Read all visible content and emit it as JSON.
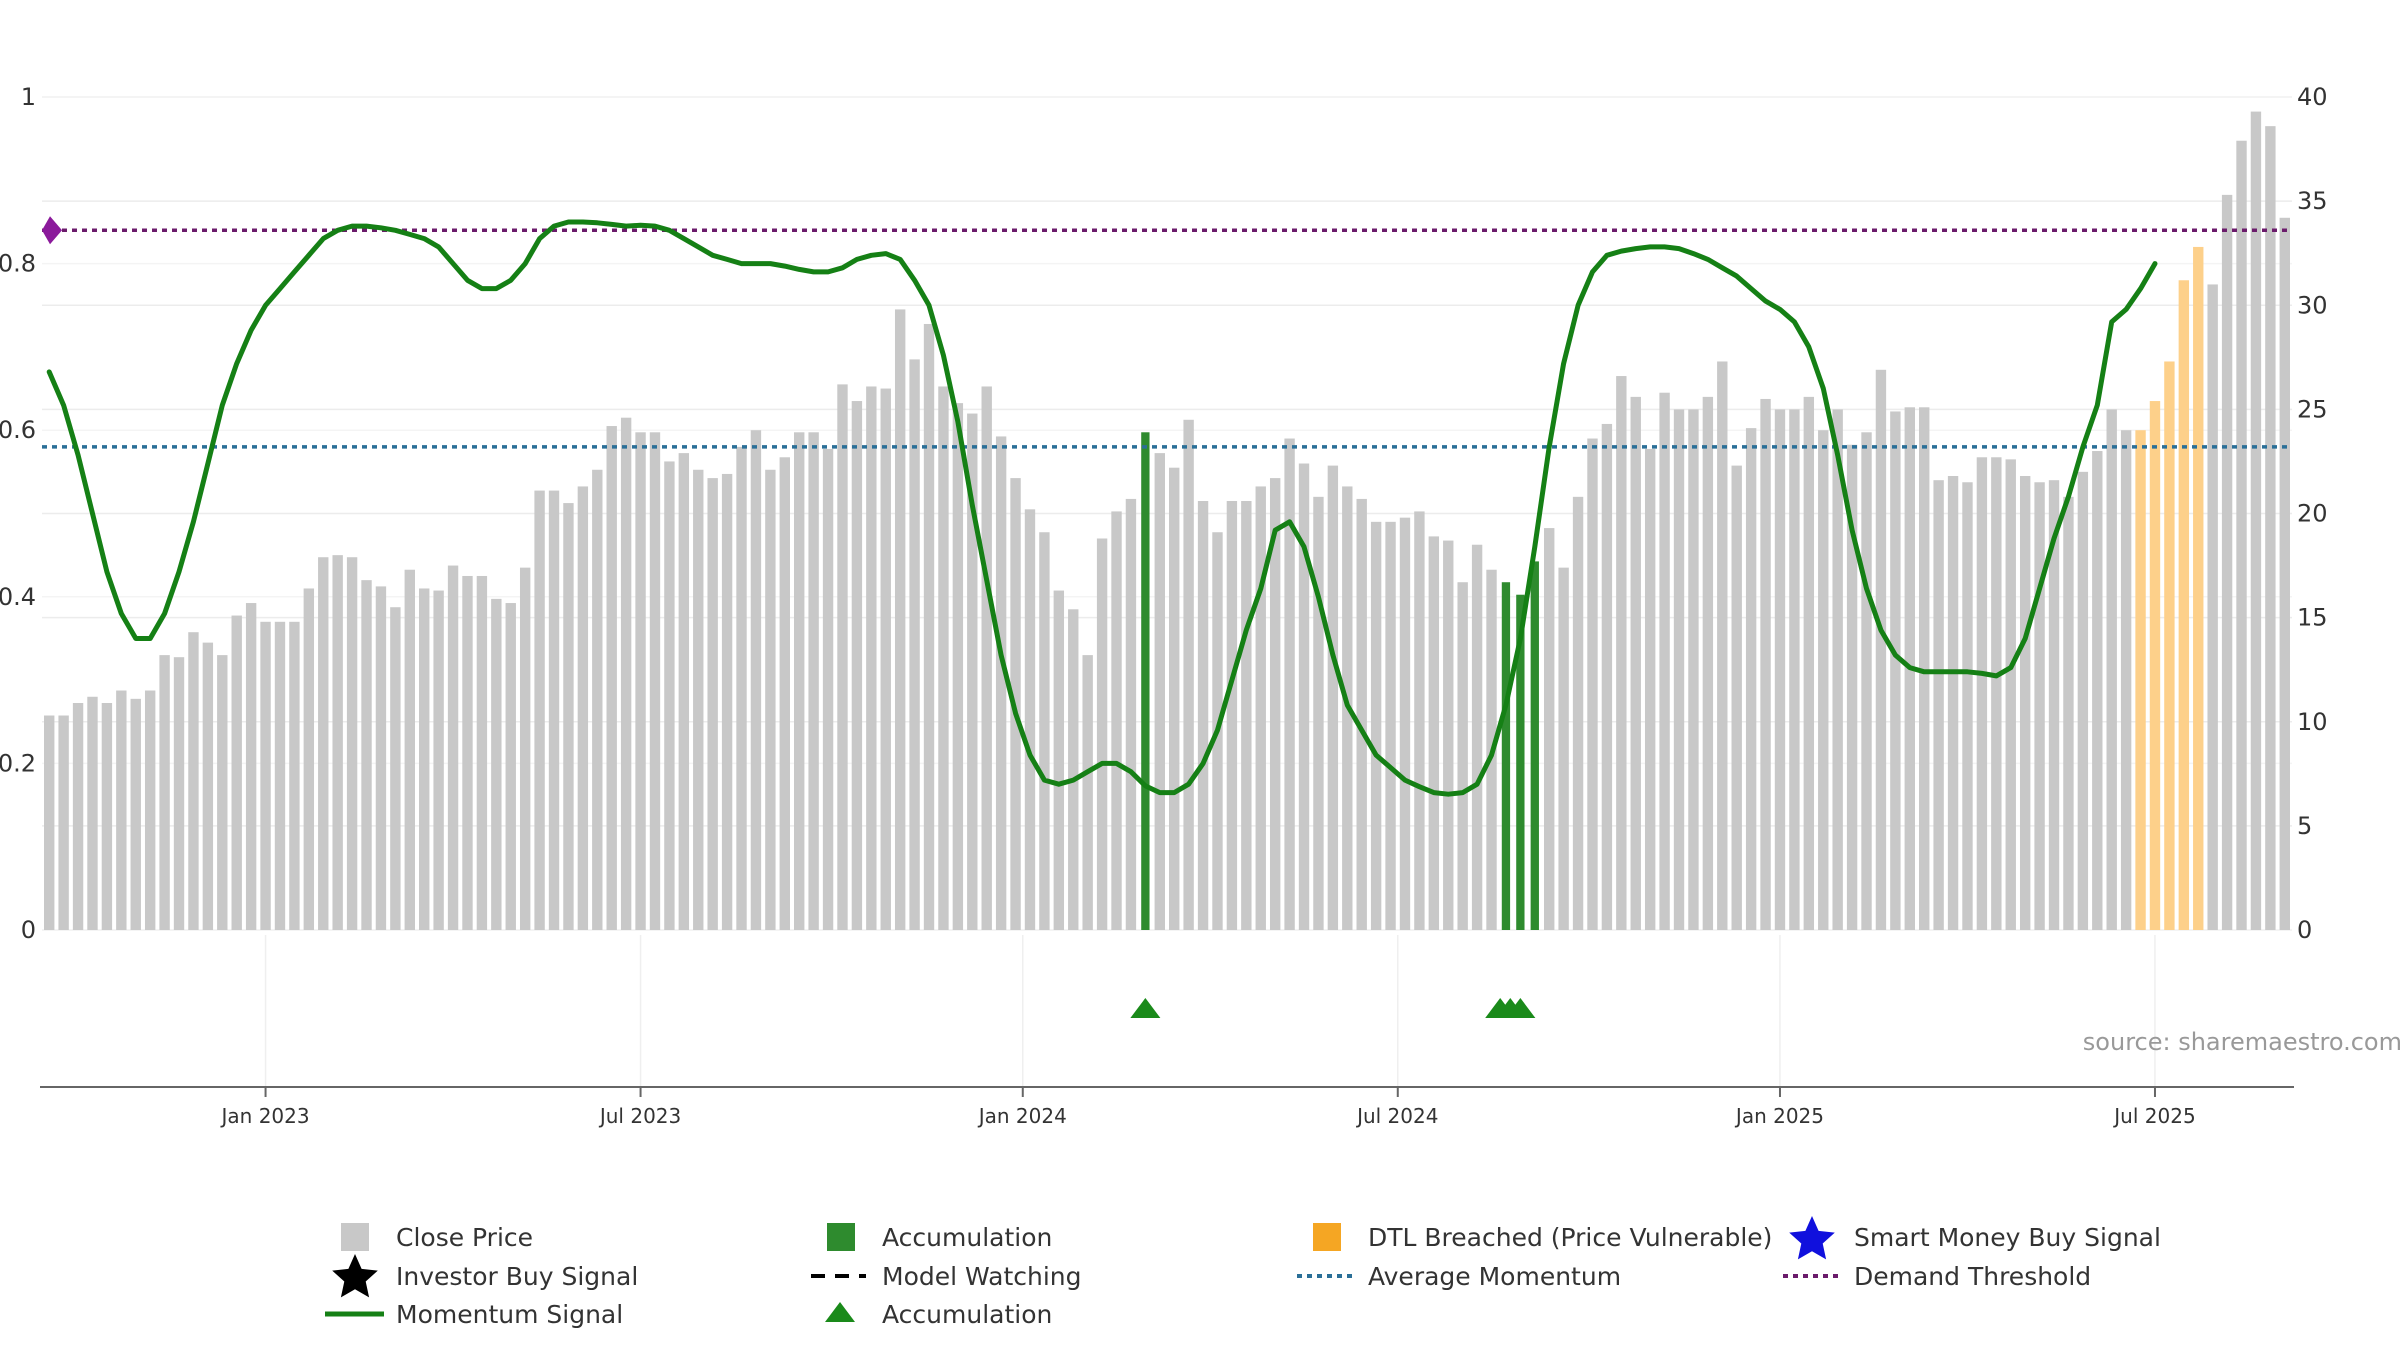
{
  "chart_data": {
    "type": "bar",
    "title": "",
    "xlabel": "",
    "ylabel": "",
    "source": "source: sharemaestro.com",
    "left_axis": {
      "range": [
        0,
        1
      ],
      "ticks": [
        0,
        0.2,
        0.4,
        0.6,
        0.8,
        1
      ],
      "tick_labels": [
        "0",
        "0.2",
        "0.4",
        "0.6",
        "0.8",
        "1"
      ]
    },
    "right_axis": {
      "range": [
        0,
        40
      ],
      "ticks": [
        0,
        5,
        10,
        15,
        20,
        25,
        30,
        35,
        40
      ],
      "tick_labels": [
        "0",
        "5",
        "10",
        "15",
        "20",
        "25",
        "30",
        "35",
        "40"
      ]
    },
    "x_ticks": [
      {
        "label": "Jan 2023",
        "week": 15
      },
      {
        "label": "Jul 2023",
        "week": 41
      },
      {
        "label": "Jan 2024",
        "week": 67.5
      },
      {
        "label": "Jul 2024",
        "week": 93.5
      },
      {
        "label": "Jan 2025",
        "week": 120
      },
      {
        "label": "Jul 2025",
        "week": 146
      }
    ],
    "close_price": [
      10.3,
      10.3,
      10.9,
      11.2,
      10.9,
      11.5,
      11.1,
      11.5,
      13.2,
      13.1,
      14.3,
      13.8,
      13.2,
      15.1,
      15.7,
      14.8,
      14.8,
      14.8,
      16.4,
      17.9,
      18.0,
      17.9,
      16.8,
      16.5,
      15.5,
      17.3,
      16.4,
      16.3,
      17.5,
      17.0,
      17.0,
      15.9,
      15.7,
      17.4,
      21.1,
      21.1,
      20.5,
      21.3,
      22.1,
      24.2,
      24.6,
      23.9,
      23.9,
      22.5,
      22.9,
      22.1,
      21.7,
      21.9,
      23.2,
      24.0,
      22.1,
      22.7,
      23.9,
      23.9,
      23.1,
      26.2,
      25.4,
      26.1,
      26.0,
      29.8,
      27.4,
      29.1,
      26.1,
      25.3,
      24.8,
      26.1,
      23.7,
      21.7,
      20.2,
      19.1,
      16.3,
      15.4,
      13.2,
      18.8,
      20.1,
      20.7,
      23.9,
      22.9,
      22.2,
      24.5,
      20.6,
      19.1,
      20.6,
      20.6,
      21.3,
      21.7,
      23.6,
      22.4,
      20.8,
      22.3,
      21.3,
      20.7,
      19.6,
      19.6,
      19.8,
      20.1,
      18.9,
      18.7,
      16.7,
      18.5,
      17.3,
      16.7,
      16.1,
      17.7,
      19.3,
      17.4,
      20.8,
      23.6,
      24.3,
      26.6,
      25.6,
      23.1,
      25.8,
      25.0,
      25.0,
      25.6,
      27.3,
      22.3,
      24.1,
      25.5,
      25.0,
      25.0,
      25.6,
      24.0,
      25.0,
      23.3,
      23.9,
      26.9,
      24.9,
      25.1,
      25.1,
      21.6,
      21.8,
      21.5,
      22.7,
      22.7,
      22.6,
      21.8,
      21.5,
      21.6,
      20.8,
      22.0,
      23.0,
      25.0,
      24.0,
      24.0,
      25.4,
      27.3,
      31.2,
      32.8,
      31.0,
      35.3,
      37.9,
      39.3,
      38.6,
      34.2
    ],
    "momentum_signal": [
      [
        0,
        0.67
      ],
      [
        1,
        0.63
      ],
      [
        2,
        0.57
      ],
      [
        3,
        0.5
      ],
      [
        4,
        0.43
      ],
      [
        5,
        0.38
      ],
      [
        6,
        0.35
      ],
      [
        7,
        0.35
      ],
      [
        8,
        0.38
      ],
      [
        9,
        0.43
      ],
      [
        10,
        0.49
      ],
      [
        11,
        0.56
      ],
      [
        12,
        0.63
      ],
      [
        13,
        0.68
      ],
      [
        14,
        0.72
      ],
      [
        15,
        0.75
      ],
      [
        16,
        0.77
      ],
      [
        17,
        0.79
      ],
      [
        18,
        0.81
      ],
      [
        19,
        0.83
      ],
      [
        20,
        0.84
      ],
      [
        21,
        0.845
      ],
      [
        22,
        0.845
      ],
      [
        23,
        0.843
      ],
      [
        24,
        0.84
      ],
      [
        25,
        0.835
      ],
      [
        26,
        0.83
      ],
      [
        27,
        0.82
      ],
      [
        28,
        0.8
      ],
      [
        29,
        0.78
      ],
      [
        30,
        0.77
      ],
      [
        31,
        0.77
      ],
      [
        32,
        0.78
      ],
      [
        33,
        0.8
      ],
      [
        34,
        0.83
      ],
      [
        35,
        0.845
      ],
      [
        36,
        0.85
      ],
      [
        37,
        0.85
      ],
      [
        38,
        0.849
      ],
      [
        39,
        0.847
      ],
      [
        40,
        0.845
      ],
      [
        41,
        0.846
      ],
      [
        42,
        0.845
      ],
      [
        43,
        0.84
      ],
      [
        44,
        0.83
      ],
      [
        45,
        0.82
      ],
      [
        46,
        0.81
      ],
      [
        47,
        0.805
      ],
      [
        48,
        0.8
      ],
      [
        49,
        0.8
      ],
      [
        50,
        0.8
      ],
      [
        51,
        0.797
      ],
      [
        52,
        0.793
      ],
      [
        53,
        0.79
      ],
      [
        54,
        0.79
      ],
      [
        55,
        0.795
      ],
      [
        56,
        0.805
      ],
      [
        57,
        0.81
      ],
      [
        58,
        0.812
      ],
      [
        59,
        0.805
      ],
      [
        60,
        0.78
      ],
      [
        61,
        0.75
      ],
      [
        62,
        0.69
      ],
      [
        63,
        0.61
      ],
      [
        64,
        0.51
      ],
      [
        65,
        0.42
      ],
      [
        66,
        0.33
      ],
      [
        67,
        0.26
      ],
      [
        68,
        0.21
      ],
      [
        69,
        0.18
      ],
      [
        70,
        0.175
      ],
      [
        71,
        0.18
      ],
      [
        72,
        0.19
      ],
      [
        73,
        0.2
      ],
      [
        74,
        0.2
      ],
      [
        75,
        0.19
      ],
      [
        76,
        0.173
      ],
      [
        77,
        0.165
      ],
      [
        78,
        0.165
      ],
      [
        79,
        0.175
      ],
      [
        80,
        0.2
      ],
      [
        81,
        0.24
      ],
      [
        82,
        0.3
      ],
      [
        83,
        0.36
      ],
      [
        84,
        0.41
      ],
      [
        85,
        0.48
      ],
      [
        86,
        0.49
      ],
      [
        87,
        0.46
      ],
      [
        88,
        0.4
      ],
      [
        89,
        0.33
      ],
      [
        90,
        0.27
      ],
      [
        91,
        0.24
      ],
      [
        92,
        0.21
      ],
      [
        93,
        0.195
      ],
      [
        94,
        0.18
      ],
      [
        95,
        0.172
      ],
      [
        96,
        0.165
      ],
      [
        97,
        0.163
      ],
      [
        98,
        0.165
      ],
      [
        99,
        0.175
      ],
      [
        100,
        0.21
      ],
      [
        101,
        0.27
      ],
      [
        102,
        0.35
      ],
      [
        103,
        0.46
      ],
      [
        104,
        0.58
      ],
      [
        105,
        0.68
      ],
      [
        106,
        0.75
      ],
      [
        107,
        0.79
      ],
      [
        108,
        0.81
      ],
      [
        109,
        0.815
      ],
      [
        110,
        0.818
      ],
      [
        111,
        0.82
      ],
      [
        112,
        0.82
      ],
      [
        113,
        0.818
      ],
      [
        114,
        0.812
      ],
      [
        115,
        0.805
      ],
      [
        116,
        0.795
      ],
      [
        117,
        0.785
      ],
      [
        118,
        0.77
      ],
      [
        119,
        0.755
      ],
      [
        120,
        0.745
      ],
      [
        121,
        0.73
      ],
      [
        122,
        0.7
      ],
      [
        123,
        0.65
      ],
      [
        124,
        0.57
      ],
      [
        125,
        0.48
      ],
      [
        126,
        0.41
      ],
      [
        127,
        0.36
      ],
      [
        128,
        0.33
      ],
      [
        129,
        0.315
      ],
      [
        130,
        0.31
      ],
      [
        131,
        0.31
      ],
      [
        132,
        0.31
      ],
      [
        133,
        0.31
      ],
      [
        134,
        0.308
      ],
      [
        135,
        0.305
      ],
      [
        136,
        0.315
      ],
      [
        137,
        0.35
      ],
      [
        138,
        0.41
      ],
      [
        139,
        0.47
      ],
      [
        140,
        0.52
      ],
      [
        141,
        0.58
      ],
      [
        142,
        0.63
      ],
      [
        143,
        0.73
      ],
      [
        144,
        0.745
      ],
      [
        145,
        0.77
      ],
      [
        146,
        0.8
      ]
    ],
    "accumulation_bars": [
      76,
      101,
      102,
      103
    ],
    "accumulation_markers": [
      76,
      100.6,
      101.3,
      102
    ],
    "dtl_breached_bars": [
      145,
      146,
      147,
      148,
      149
    ],
    "average_momentum": 0.58,
    "demand_threshold": 0.84,
    "legend": [
      {
        "key": "close",
        "label": "Close Price"
      },
      {
        "key": "accum-bar",
        "label": "Accumulation"
      },
      {
        "key": "dtl",
        "label": "DTL Breached (Price Vulnerable)"
      },
      {
        "key": "smart-money",
        "label": "Smart Money Buy Signal"
      },
      {
        "key": "investor-buy",
        "label": "Investor Buy Signal"
      },
      {
        "key": "model-watching",
        "label": "Model Watching"
      },
      {
        "key": "avg-momentum",
        "label": "Average Momentum"
      },
      {
        "key": "demand-threshold",
        "label": "Demand Threshold"
      },
      {
        "key": "momentum",
        "label": "Momentum Signal"
      },
      {
        "key": "accum-marker",
        "label": "Accumulation"
      }
    ],
    "colors": {
      "close": "#c8c8c8",
      "accumulation": "#2e8b2e",
      "dtl": "#fdd08a",
      "momentum": "#158015",
      "average_momentum": "#2a6f97",
      "demand_threshold": "#6b1b6b",
      "demand_marker": "#8b1a9b",
      "accum_marker": "#1a8a1a",
      "smart_money": "#1010dd",
      "investor_buy": "#000000"
    }
  }
}
